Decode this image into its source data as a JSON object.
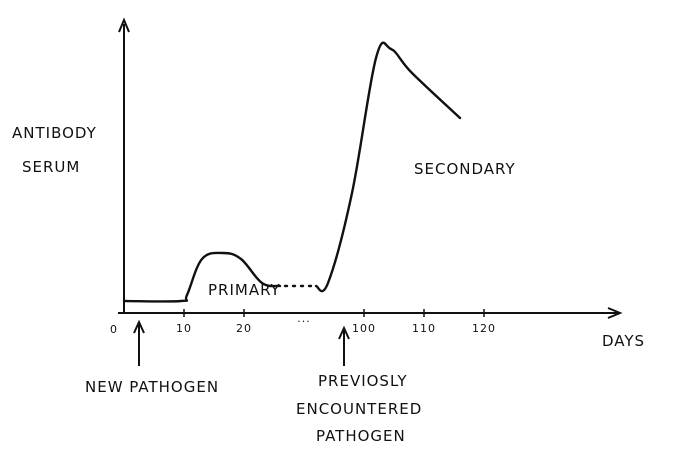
{
  "chart_data": {
    "type": "line",
    "ylabel_line1": "ANTIBODY",
    "ylabel_line2": "SERUM",
    "xlabel": "DAYS",
    "origin_label": "0",
    "ticks": [
      {
        "label": "10",
        "x": 10
      },
      {
        "label": "20",
        "x": 20
      },
      {
        "label": "...",
        "x": 30
      },
      {
        "label": "100",
        "x": 40
      },
      {
        "label": "110",
        "x": 50
      },
      {
        "label": "120",
        "x": 60
      }
    ],
    "series": [
      {
        "points": [
          [
            0,
            4
          ],
          [
            9.5,
            4
          ],
          [
            10.5,
            6
          ],
          [
            13,
            18
          ],
          [
            16.5,
            20
          ],
          [
            19.5,
            18
          ],
          [
            23,
            10
          ],
          [
            26,
            9
          ]
        ]
      },
      {
        "points": [
          [
            32,
            9
          ],
          [
            34,
            10
          ],
          [
            38,
            40
          ],
          [
            42,
            85
          ],
          [
            44.5,
            88
          ],
          [
            48,
            80
          ],
          [
            56,
            65
          ]
        ]
      }
    ],
    "gap": [
      [
        26,
        9
      ],
      [
        32,
        9
      ]
    ],
    "annotations": {
      "primary": "PRIMARY",
      "secondary": "SECONDARY",
      "new_pathogen": "NEW PATHOGEN",
      "previously_line1": "PREVIOSLY",
      "previously_line2": "ENCOUNTERED",
      "previously_line3": "PATHOGEN"
    },
    "xlim": [
      0,
      75
    ],
    "ylim": [
      0,
      100
    ],
    "grid": false
  }
}
